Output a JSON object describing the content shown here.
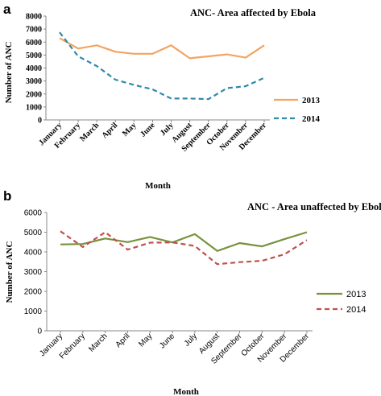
{
  "chart_data": [
    {
      "panel": "a",
      "type": "line",
      "title": "ANC- Area affected by Ebola",
      "xlabel": "Month",
      "ylabel": "Number of ANC",
      "ylim": [
        0,
        8000
      ],
      "yticks": [
        "0",
        "1000",
        "2000",
        "3000",
        "4000",
        "5000",
        "6000",
        "7000",
        "8000"
      ],
      "categories": [
        "January",
        "February",
        "March",
        "April",
        "May",
        "June",
        "July",
        "August",
        "September",
        "October",
        "November",
        "December"
      ],
      "series": [
        {
          "name": "2013",
          "color": "#f4a460",
          "dash": "solid",
          "values": [
            6300,
            5500,
            5750,
            5250,
            5100,
            5100,
            5750,
            4750,
            4900,
            5050,
            4800,
            5750
          ]
        },
        {
          "name": "2014",
          "color": "#2f8aa8",
          "dash": "dashed",
          "values": [
            6750,
            4900,
            4150,
            3100,
            2700,
            2350,
            1650,
            1650,
            1600,
            2450,
            2600,
            3250
          ]
        }
      ],
      "legend": "right"
    },
    {
      "panel": "b",
      "type": "line",
      "title": "ANC - Area unaffected by Ebola",
      "xlabel": "Month",
      "ylabel": "Number of ANC",
      "ylim": [
        0,
        6000
      ],
      "yticks": [
        "0",
        "1000",
        "2000",
        "3000",
        "4000",
        "5000",
        "6000"
      ],
      "categories": [
        "January",
        "February",
        "March",
        "April",
        "May",
        "June",
        "July",
        "August",
        "September",
        "October",
        "November",
        "December"
      ],
      "series": [
        {
          "name": "2013",
          "color": "#77933c",
          "dash": "solid",
          "values": [
            4380,
            4400,
            4680,
            4500,
            4760,
            4480,
            4900,
            4050,
            4450,
            4280,
            4650,
            5000
          ]
        },
        {
          "name": "2014",
          "color": "#c0504d",
          "dash": "dashed",
          "values": [
            5050,
            4250,
            5000,
            4120,
            4470,
            4480,
            4300,
            3380,
            3480,
            3550,
            3880,
            4600
          ]
        }
      ],
      "legend": "right"
    }
  ]
}
